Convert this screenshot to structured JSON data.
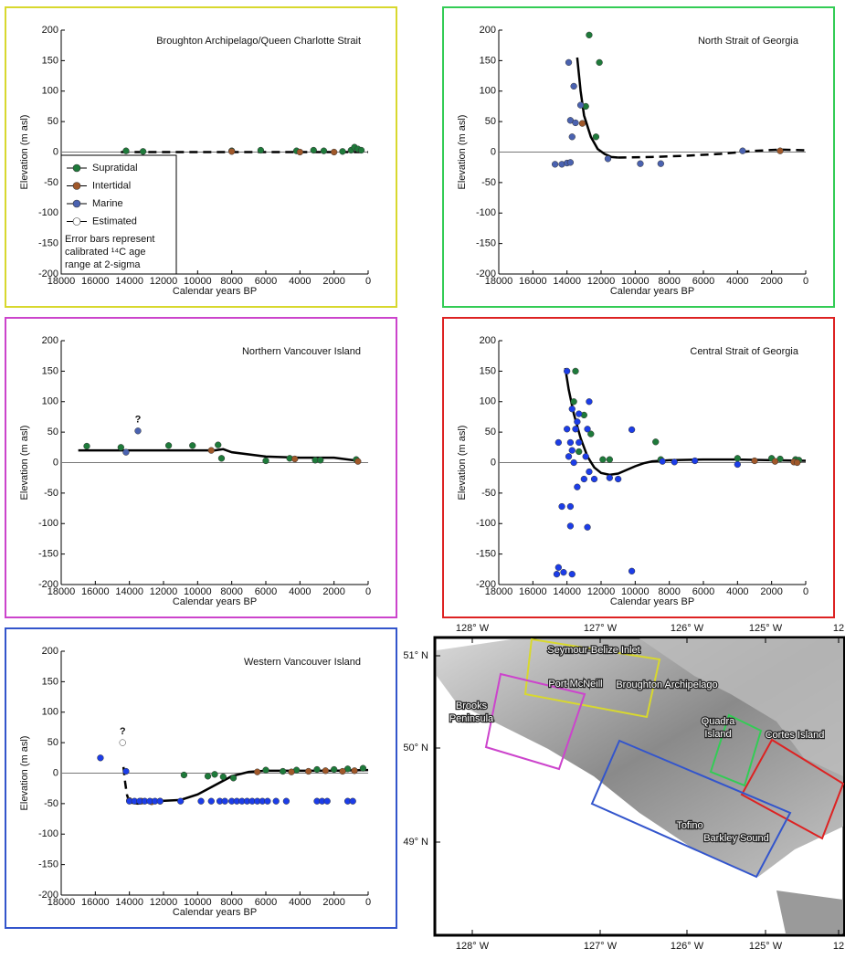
{
  "chart_data": [
    {
      "type": "scatter",
      "title": "Broughton Archipelago/Queen Charlotte Strait",
      "frame_color": "#d8d82e",
      "x_label": "Calendar years BP",
      "y_label": "Elevation (m asl)",
      "xlim": [
        18000,
        0
      ],
      "ylim": [
        -200,
        200
      ],
      "xticks": [
        18000,
        16000,
        14000,
        12000,
        10000,
        8000,
        6000,
        4000,
        2000,
        0
      ],
      "yticks": [
        -200,
        -150,
        -100,
        -50,
        0,
        50,
        100,
        150,
        200
      ],
      "legend": "lower left",
      "legend_note": [
        "Error bars represent",
        "calibrated ¹⁴C age",
        "range at 2-sigma"
      ],
      "series": [
        {
          "name": "Supratidal",
          "color": "#1e7a3a",
          "x": [
            14200,
            13200,
            8000,
            6300,
            4200,
            3200,
            2600,
            1500,
            1000,
            800,
            600,
            400
          ],
          "values": [
            2,
            1,
            2,
            3,
            2,
            3,
            2,
            1,
            3,
            8,
            5,
            3
          ]
        },
        {
          "name": "Intertidal",
          "color": "#a0582a",
          "x": [
            8000,
            4000,
            2000
          ],
          "values": [
            1,
            0,
            0
          ]
        },
        {
          "name": "Marine",
          "color": "#4a62b0",
          "x": [],
          "values": []
        },
        {
          "name": "Estimated",
          "color": "#ffffff",
          "x": [],
          "values": []
        }
      ],
      "curves": [
        {
          "x": [
            14500,
            10000,
            5000,
            0
          ],
          "values": [
            0,
            0,
            0,
            0
          ],
          "dashed": true
        }
      ]
    },
    {
      "type": "scatter",
      "title": "North Strait of Georgia",
      "frame_color": "#33cc55",
      "x_label": "Calendar years BP",
      "y_label": "Elevation (m asl)",
      "xlim": [
        18000,
        0
      ],
      "ylim": [
        -200,
        200
      ],
      "xticks": [
        18000,
        16000,
        14000,
        12000,
        10000,
        8000,
        6000,
        4000,
        2000,
        0
      ],
      "yticks": [
        -200,
        -150,
        -100,
        -50,
        0,
        50,
        100,
        150,
        200
      ],
      "series": [
        {
          "color": "#1e7a3a",
          "x": [
            12700,
            12100,
            12900,
            12300
          ],
          "values": [
            192,
            147,
            75,
            25
          ]
        },
        {
          "color": "#a0582a",
          "x": [
            13100,
            1500
          ],
          "values": [
            47,
            2
          ]
        },
        {
          "color": "#4a62b0",
          "x": [
            13900,
            13600,
            13200,
            13800,
            13500,
            13700,
            14700,
            14300,
            14000,
            13800,
            11600,
            9700,
            8500,
            3700
          ],
          "values": [
            147,
            108,
            77,
            52,
            48,
            25,
            -20,
            -20,
            -18,
            -17,
            -11,
            -19,
            -19,
            2
          ]
        }
      ],
      "curves": [
        {
          "x": [
            13400,
            13200,
            13000,
            12600,
            12200,
            11800,
            11400,
            11000
          ],
          "values": [
            155,
            100,
            60,
            25,
            5,
            -3,
            -8,
            -9
          ],
          "dashed": false
        },
        {
          "x": [
            11000,
            9000,
            7000,
            5000,
            3000,
            1500,
            0
          ],
          "values": [
            -9,
            -8,
            -6,
            -3,
            2,
            4,
            3
          ],
          "dashed": true
        }
      ]
    },
    {
      "type": "scatter",
      "title": "Northern Vancouver Island",
      "frame_color": "#cc44cc",
      "x_label": "Calendar years BP",
      "y_label": "Elevation (m asl)",
      "xlim": [
        18000,
        0
      ],
      "ylim": [
        -200,
        200
      ],
      "xticks": [
        18000,
        16000,
        14000,
        12000,
        10000,
        8000,
        6000,
        4000,
        2000,
        0
      ],
      "yticks": [
        -200,
        -150,
        -100,
        -50,
        0,
        50,
        100,
        150,
        200
      ],
      "series": [
        {
          "color": "#1e7a3a",
          "x": [
            16500,
            14500,
            11700,
            10300,
            8800,
            8600,
            6000,
            4600,
            3100,
            2800,
            700
          ],
          "values": [
            27,
            25,
            28,
            28,
            29,
            7,
            3,
            7,
            4,
            4,
            5
          ]
        },
        {
          "color": "#a0582a",
          "x": [
            9200,
            4300,
            600
          ],
          "values": [
            20,
            6,
            2
          ]
        },
        {
          "color": "#4a62b0",
          "x": [
            14200,
            13500
          ],
          "values": [
            17,
            52
          ]
        }
      ],
      "curves": [
        {
          "x": [
            17000,
            14000,
            12000,
            10000,
            9000,
            8500,
            8000,
            6000,
            4000,
            2000,
            600
          ],
          "values": [
            20,
            20,
            20,
            20,
            20,
            22,
            17,
            10,
            8,
            8,
            3
          ],
          "dashed": false
        }
      ],
      "annotations": [
        {
          "text": "?",
          "x": 13500,
          "y": 70
        }
      ]
    },
    {
      "type": "scatter",
      "title": "Central Strait of Georgia",
      "frame_color": "#dd2222",
      "x_label": "Calendar years BP",
      "y_label": "Elevation (m asl)",
      "xlim": [
        18000,
        0
      ],
      "ylim": [
        -200,
        200
      ],
      "xticks": [
        18000,
        16000,
        14000,
        12000,
        10000,
        8000,
        6000,
        4000,
        2000,
        0
      ],
      "yticks": [
        -200,
        -150,
        -100,
        -50,
        0,
        50,
        100,
        150,
        200
      ],
      "series": [
        {
          "color": "#1e7a3a",
          "x": [
            13500,
            13600,
            13000,
            12600,
            13300,
            11900,
            11500,
            8800,
            8500,
            4000,
            2000,
            1500,
            600,
            400
          ],
          "values": [
            150,
            100,
            78,
            47,
            18,
            5,
            5,
            34,
            5,
            7,
            7,
            6,
            5,
            4
          ]
        },
        {
          "color": "#a0582a",
          "x": [
            3000,
            1800,
            700,
            500
          ],
          "values": [
            3,
            2,
            1,
            0
          ]
        },
        {
          "color": "#1c3de8",
          "x": [
            14000,
            12700,
            13700,
            13300,
            13400,
            13500,
            14000,
            12800,
            14500,
            13800,
            13300,
            13700,
            13900,
            12900,
            13600,
            12700,
            13000,
            12400,
            11500,
            11000,
            13400,
            14300,
            13800,
            13800,
            12800,
            14500,
            14600,
            14200,
            13700,
            10200,
            10200,
            8400,
            7700,
            6500,
            4000
          ],
          "values": [
            150,
            100,
            88,
            80,
            67,
            55,
            55,
            55,
            33,
            33,
            33,
            20,
            10,
            10,
            0,
            -15,
            -27,
            -27,
            -25,
            -27,
            -40,
            -72,
            -72,
            -104,
            -106,
            -172,
            -183,
            -180,
            -183,
            -178,
            54,
            2,
            1,
            3,
            -3
          ]
        }
      ],
      "curves": [
        {
          "x": [
            14100,
            13900,
            13600,
            13200,
            12800,
            12400,
            12000,
            11500,
            11000,
            10500,
            10000,
            9500,
            9000,
            8000,
            6000,
            4000,
            2000,
            0
          ],
          "values": [
            155,
            120,
            80,
            40,
            10,
            -8,
            -17,
            -20,
            -18,
            -12,
            -6,
            -1,
            2,
            4,
            5,
            5,
            4,
            3
          ],
          "dashed": false
        }
      ]
    },
    {
      "type": "scatter",
      "title": "Western Vancouver Island",
      "frame_color": "#3355cc",
      "x_label": "Calendar years BP",
      "y_label": "Elevation (m asl)",
      "xlim": [
        18000,
        0
      ],
      "ylim": [
        -200,
        200
      ],
      "xticks": [
        18000,
        16000,
        14000,
        12000,
        10000,
        8000,
        6000,
        4000,
        2000,
        0
      ],
      "yticks": [
        -200,
        -150,
        -100,
        -50,
        0,
        50,
        100,
        150,
        200
      ],
      "series": [
        {
          "color": "#1e7a3a",
          "x": [
            10800,
            9400,
            9000,
            8500,
            7900,
            6000,
            5000,
            4200,
            3000,
            2000,
            1200,
            300
          ],
          "values": [
            -3,
            -5,
            -2,
            -6,
            -8,
            5,
            3,
            5,
            6,
            6,
            7,
            8
          ]
        },
        {
          "color": "#a0582a",
          "x": [
            14000,
            13300,
            12700,
            12200,
            6500,
            4500,
            3500,
            2500,
            1500,
            800
          ],
          "values": [
            -45,
            -46,
            -47,
            -46,
            2,
            2,
            3,
            4,
            3,
            4
          ]
        },
        {
          "color": "#1c3de8",
          "x": [
            15700,
            14200,
            14000,
            13700,
            13400,
            13100,
            12800,
            12500,
            12200,
            11000,
            9800,
            9200,
            8700,
            8400,
            8000,
            7700,
            7400,
            7100,
            6800,
            6500,
            6200,
            5900,
            5400,
            4800,
            3000,
            2700,
            2400,
            1200,
            900
          ],
          "values": [
            25,
            3,
            -46,
            -46,
            -46,
            -46,
            -46,
            -46,
            -46,
            -46,
            -46,
            -46,
            -46,
            -46,
            -46,
            -46,
            -46,
            -46,
            -46,
            -46,
            -46,
            -46,
            -46,
            -46,
            -46,
            -46,
            -46,
            -46,
            -46
          ]
        },
        {
          "color": "#ffffff",
          "x": [
            14400
          ],
          "values": [
            50
          ]
        }
      ],
      "curves": [
        {
          "x": [
            14350,
            14250,
            14150
          ],
          "values": [
            10,
            -15,
            -35
          ],
          "dashed": true
        },
        {
          "x": [
            14150,
            14000,
            13500,
            12500,
            11000,
            10000,
            9000,
            8000,
            7000,
            6000,
            4000,
            2000,
            0
          ],
          "values": [
            -35,
            -48,
            -50,
            -46,
            -44,
            -35,
            -20,
            -5,
            2,
            4,
            4,
            4,
            5
          ],
          "dashed": false
        }
      ],
      "annotations": [
        {
          "text": "?",
          "x": 14400,
          "y": 68
        }
      ]
    }
  ],
  "map": {
    "top_labels": [
      "128° W",
      "127° W",
      "126° W",
      "125° W",
      "12"
    ],
    "bottom_labels": [
      "128° W",
      "127° W",
      "126° W",
      "125° W",
      "12"
    ],
    "lat_labels": [
      "51° N",
      "50° N",
      "49° N"
    ],
    "places": [
      [
        "Seymour-Belize Inlet"
      ],
      [
        "Port McNeill"
      ],
      [
        "Broughton Archipelago"
      ],
      [
        "Quadra",
        "Island"
      ],
      [
        "Cortes Island"
      ],
      [
        "Brooks",
        "Peninsula"
      ],
      [
        "Tofino"
      ],
      [
        "Barkley Sound"
      ]
    ]
  }
}
